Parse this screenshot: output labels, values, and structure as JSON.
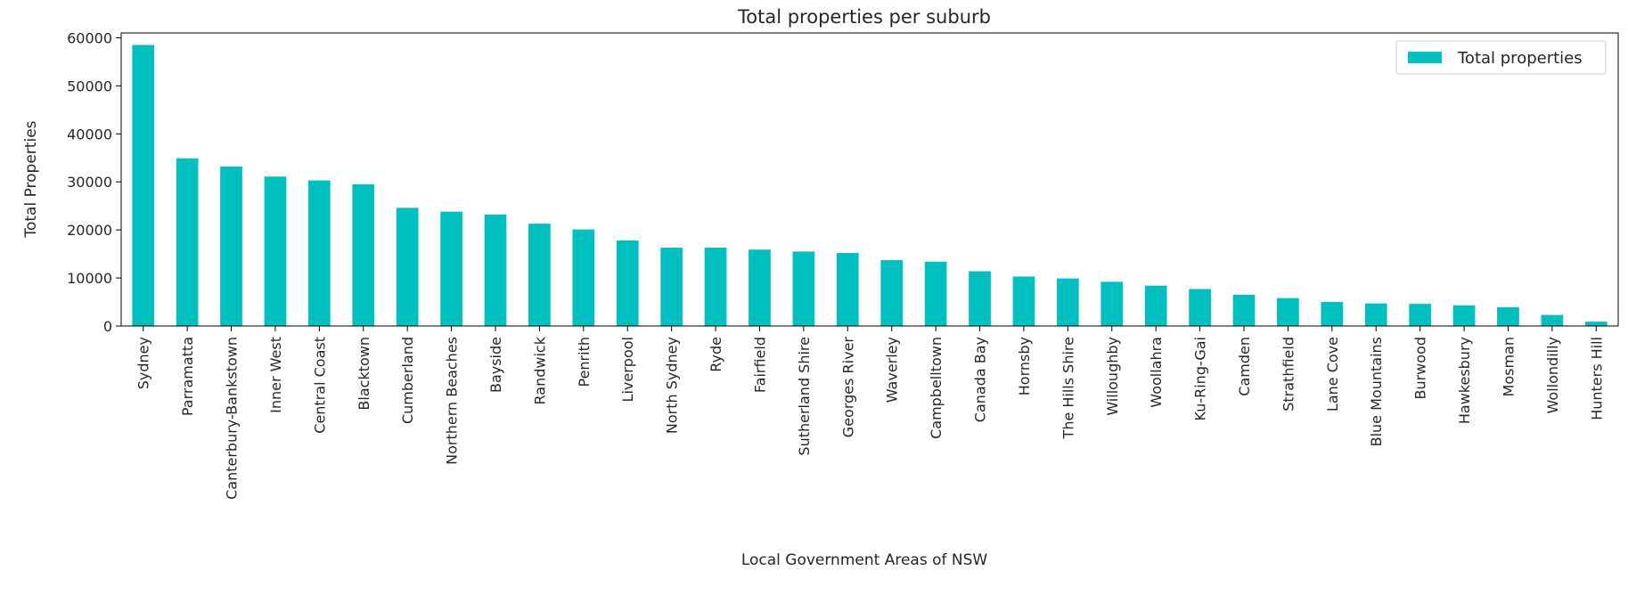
{
  "chart_data": {
    "type": "bar",
    "title": "Total properties per suburb",
    "xlabel": "Local Government Areas of NSW",
    "ylabel": "Total Properties",
    "ylim": [
      0,
      61000
    ],
    "yticks": [
      0,
      10000,
      20000,
      30000,
      40000,
      50000,
      60000
    ],
    "grid": false,
    "legend_position": "top-right",
    "bar_color": "#00bfbf",
    "categories": [
      "Sydney",
      "Parramatta",
      "Canterbury-Bankstown",
      "Inner West",
      "Central Coast",
      "Blacktown",
      "Cumberland",
      "Northern Beaches",
      "Bayside",
      "Randwick",
      "Penrith",
      "Liverpool",
      "North Sydney",
      "Ryde",
      "Fairfield",
      "Sutherland Shire",
      "Georges River",
      "Waverley",
      "Campbelltown",
      "Canada Bay",
      "Hornsby",
      "The Hills Shire",
      "Willoughby",
      "Woollahra",
      "Ku-Ring-Gai",
      "Camden",
      "Strathfield",
      "Lane Cove",
      "Blue Mountains",
      "Burwood",
      "Hawkesbury",
      "Mosman",
      "Wollondilly",
      "Hunters Hill"
    ],
    "series": [
      {
        "name": "Total properties",
        "values": [
          58500,
          34900,
          33200,
          31100,
          30300,
          29500,
          24600,
          23800,
          23200,
          21300,
          20100,
          17800,
          16300,
          16300,
          15900,
          15500,
          15200,
          13700,
          13400,
          11400,
          10300,
          9900,
          9200,
          8400,
          7700,
          6500,
          5800,
          5000,
          4700,
          4600,
          4300,
          3900,
          2300,
          900
        ]
      }
    ]
  }
}
